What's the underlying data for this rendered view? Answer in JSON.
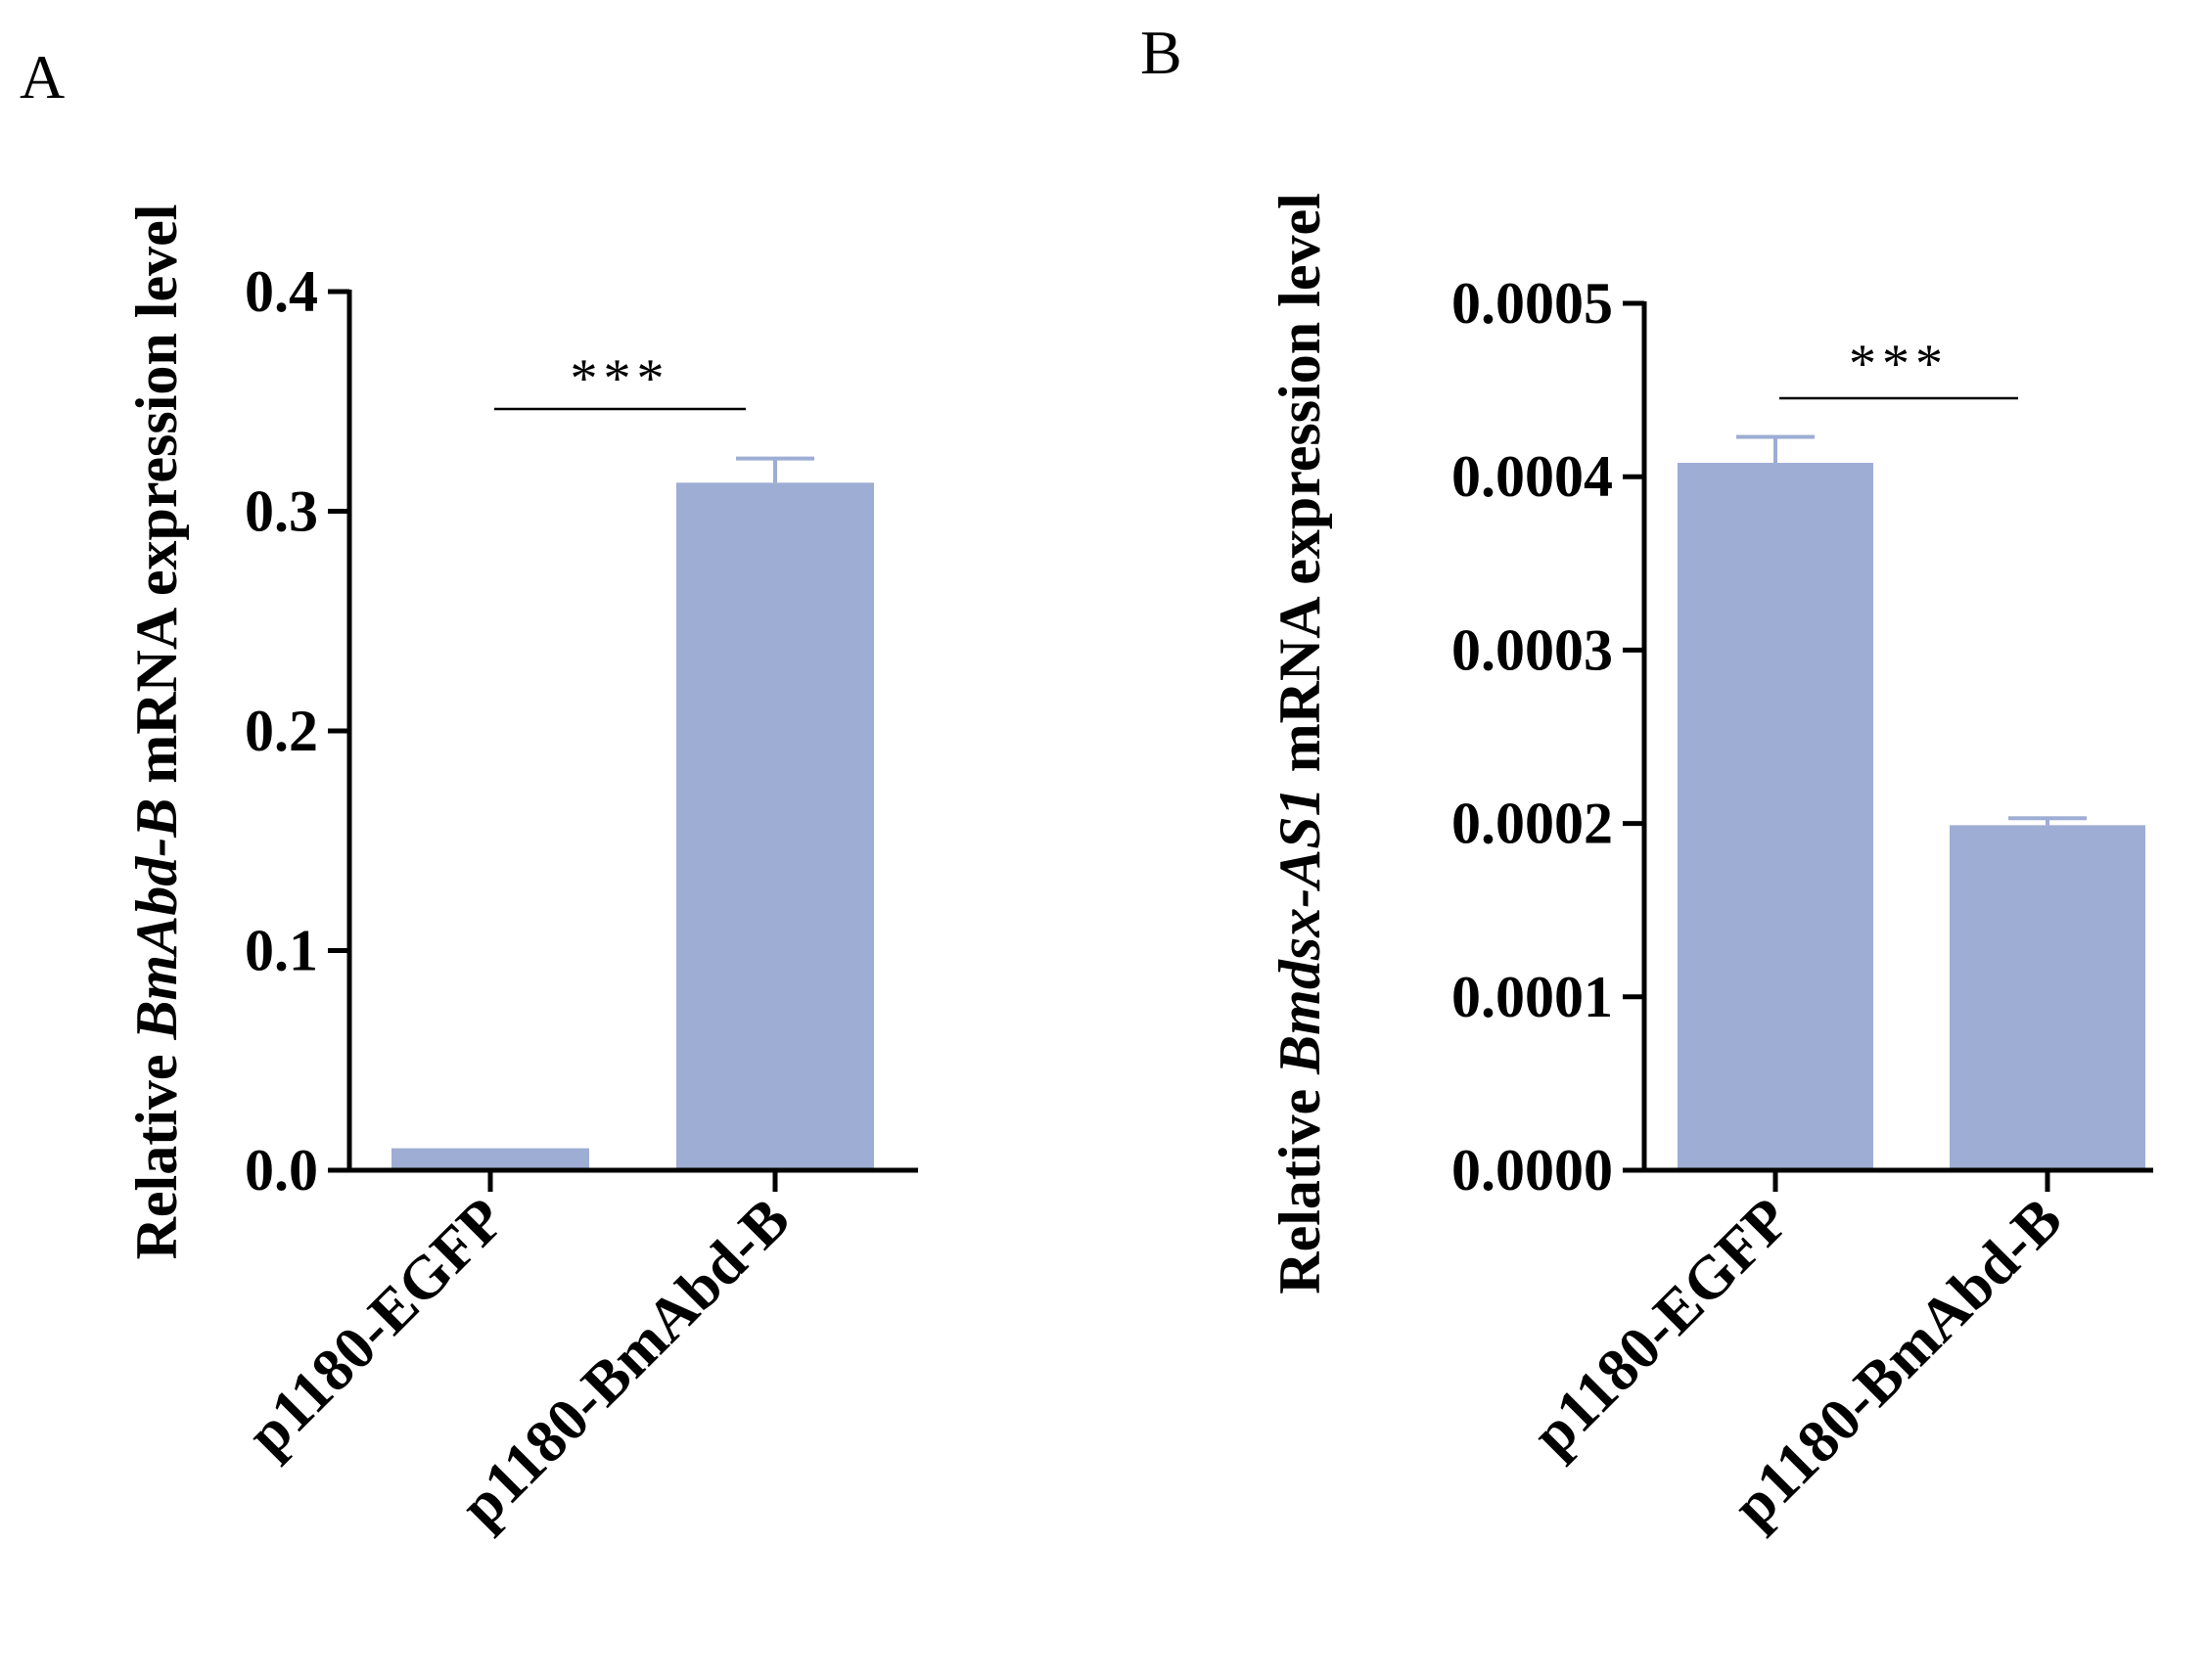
{
  "colors": {
    "bar": "#9dadd3",
    "axis": "#000000",
    "text": "#000000"
  },
  "chart_data": [
    {
      "type": "bar",
      "panel_label": "A",
      "categories": [
        "p1180-EGFP",
        "p1180-BmAbd-B"
      ],
      "values": [
        0.01,
        0.313
      ],
      "error": [
        0.0,
        0.011
      ],
      "ylabel_parts": [
        {
          "text": "Relative ",
          "italic": false
        },
        {
          "text": "BmAbd-B",
          "italic": true
        },
        {
          "text": " mRNA expression level",
          "italic": false
        }
      ],
      "ylim": [
        0,
        0.4
      ],
      "yticks": [
        0.0,
        0.1,
        0.2,
        0.3,
        0.4
      ],
      "ytick_labels": [
        "0.0",
        "0.1",
        "0.2",
        "0.3",
        "0.4"
      ],
      "significance": {
        "text": "***",
        "from": 0,
        "to": 1,
        "level": 0.348
      }
    },
    {
      "type": "bar",
      "panel_label": "B",
      "categories": [
        "p1180-EGFP",
        "p1180-BmAbd-B"
      ],
      "values": [
        0.000408,
        0.000199
      ],
      "error": [
        1.5e-05,
        4e-06
      ],
      "ylabel_parts": [
        {
          "text": "Relative ",
          "italic": false
        },
        {
          "text": "Bmdsx-AS1",
          "italic": true
        },
        {
          "text": " mRNA expression level",
          "italic": false
        }
      ],
      "ylim": [
        0,
        0.0005
      ],
      "yticks": [
        0.0,
        0.0001,
        0.0002,
        0.0003,
        0.0004,
        0.0005
      ],
      "ytick_labels": [
        "0.0000",
        "0.0001",
        "0.0002",
        "0.0003",
        "0.0004",
        "0.0005"
      ],
      "significance": {
        "text": "***",
        "from": 0,
        "to": 1,
        "level": 0.000444
      }
    }
  ]
}
